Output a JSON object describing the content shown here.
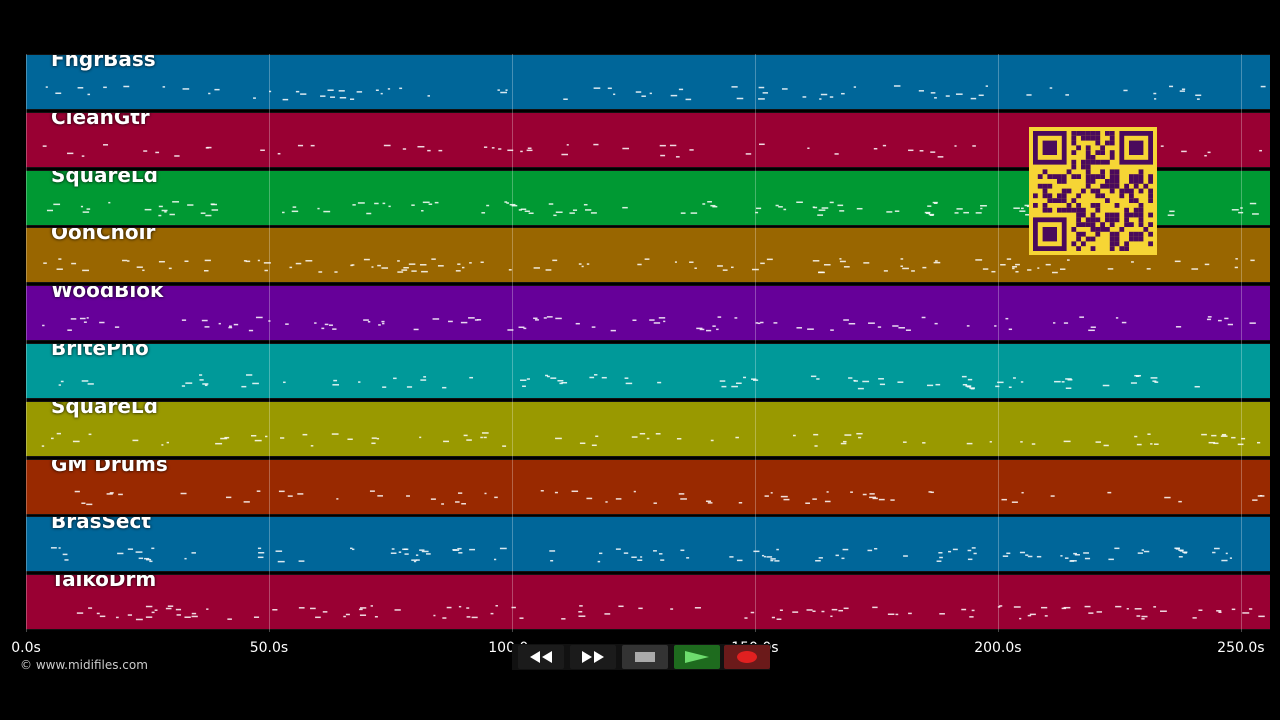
{
  "timeline": {
    "unit": "s",
    "max_seconds": 256,
    "ticks": [
      {
        "value": 0,
        "label": "0.0s"
      },
      {
        "value": 50,
        "label": "50.0s"
      },
      {
        "value": 100,
        "label": "100.0s"
      },
      {
        "value": 150,
        "label": "150.0s"
      },
      {
        "value": 200,
        "label": "200.0s"
      },
      {
        "value": 250,
        "label": "250.0s"
      }
    ]
  },
  "tracks": [
    {
      "name": "FngrBass",
      "color": "#006699"
    },
    {
      "name": "CleanGtr",
      "color": "#990033"
    },
    {
      "name": "SquareLd",
      "color": "#009933"
    },
    {
      "name": "OohChoir",
      "color": "#996600"
    },
    {
      "name": "WoodBlok",
      "color": "#660099"
    },
    {
      "name": "BritePno",
      "color": "#009999"
    },
    {
      "name": "SquareLd",
      "color": "#999900"
    },
    {
      "name": "GM Drums",
      "color": "#992900"
    },
    {
      "name": "BrasSect",
      "color": "#006699"
    },
    {
      "name": "TaikoDrm",
      "color": "#990033"
    }
  ],
  "transport": {
    "rewind_icon": "rewind-icon",
    "fast_forward_icon": "fast-forward-icon",
    "stop_icon": "stop-icon",
    "play_icon": "play-icon",
    "record_icon": "record-icon"
  },
  "footer": {
    "copyright": "© www.midifiles.com"
  },
  "overlay": {
    "qr_icon": "qr-code-icon",
    "qr_color": "#f6d535",
    "qr_dark": "#4a0a5c"
  }
}
